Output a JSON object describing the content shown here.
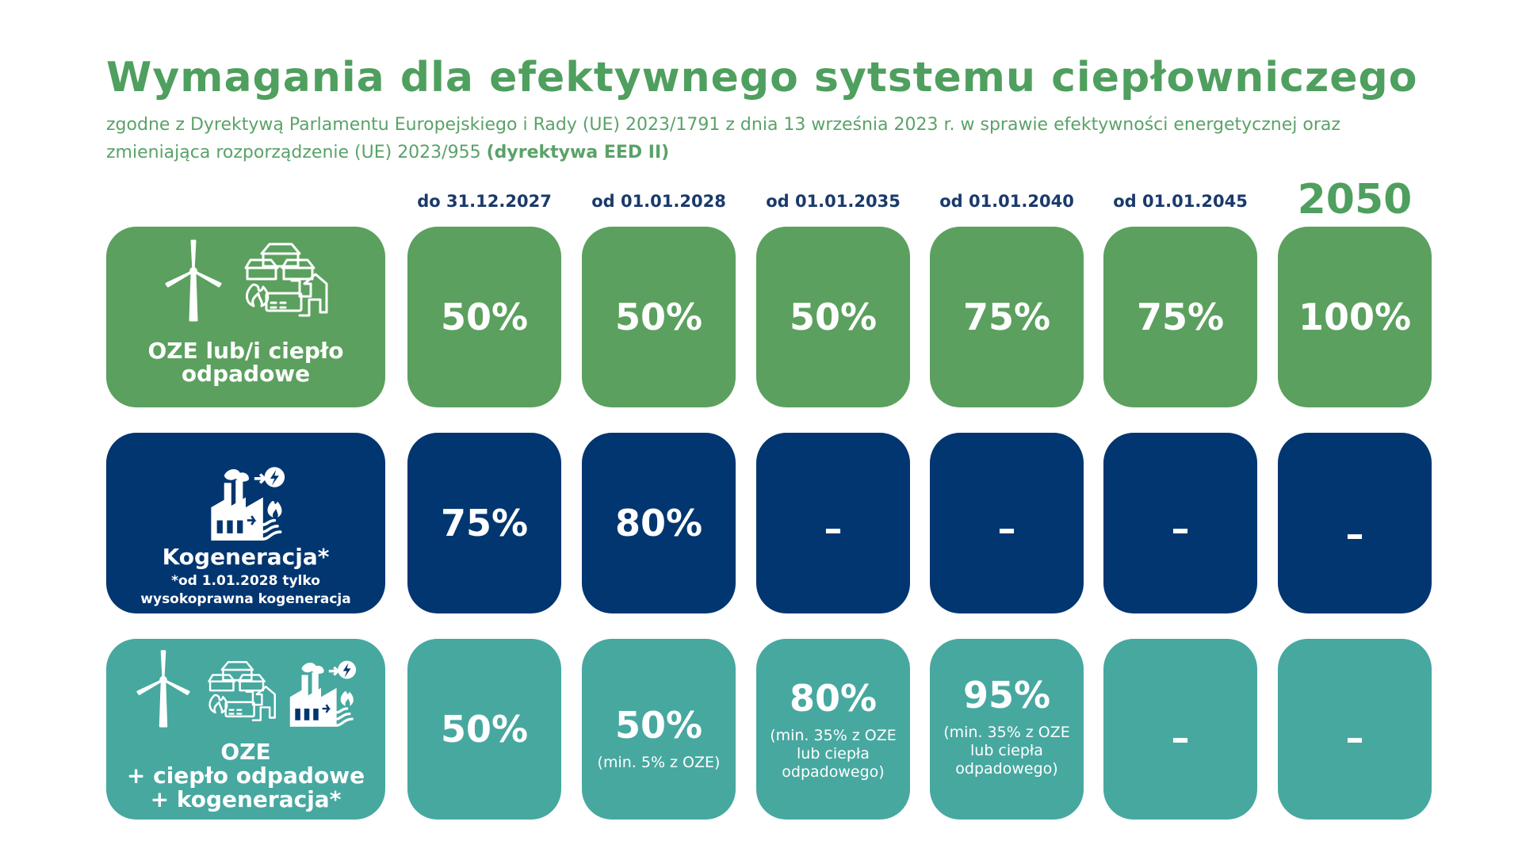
{
  "title": "Wymagania dla efektywnego sytstemu ciepłowniczego",
  "subtitle_main": "zgodne z Dyrektywą Parlamentu Europejskiego i Rady (UE) 2023/1791 z dnia 13 września 2023 r. w sprawie efektywności energetycznej oraz zmieniająca rozporządzenie (UE) 2023/955",
  "subtitle_bold": "(dyrektywa EED II)",
  "columns": [
    "do 31.12.2027",
    "od 01.01.2028",
    "od 01.01.2035",
    "od 01.01.2040",
    "od 01.01.2045",
    "2050"
  ],
  "rows": [
    {
      "label": [
        "OZE lub/i ciepło",
        "odpadowe"
      ],
      "icons": [
        "wind-turbine-icon",
        "waste-heat-icon"
      ],
      "color": "#5ba05e",
      "cells": [
        {
          "value": "50%"
        },
        {
          "value": "50%"
        },
        {
          "value": "50%"
        },
        {
          "value": "75%"
        },
        {
          "value": "75%"
        },
        {
          "value": "100%"
        }
      ]
    },
    {
      "label": [
        "Kogeneracja*"
      ],
      "sublabel": [
        "*od 1.01.2028 tylko",
        "wysokoprawna kogeneracja"
      ],
      "icons": [
        "cogeneration-plant-icon"
      ],
      "color": "#023670",
      "cells": [
        {
          "value": "75%"
        },
        {
          "value": "80%"
        },
        {
          "value": "–"
        },
        {
          "value": "–"
        },
        {
          "value": "–"
        },
        {
          "value": "–"
        }
      ]
    },
    {
      "label": [
        "OZE",
        "+ ciepło odpadowe",
        "+ kogeneracja*"
      ],
      "icons": [
        "wind-turbine-icon",
        "waste-heat-icon",
        "cogeneration-plant-icon"
      ],
      "color": "#47a8a0",
      "cells": [
        {
          "value": "50%"
        },
        {
          "value": "50%",
          "note": [
            "(min. 5% z OZE)"
          ]
        },
        {
          "value": "80%",
          "note": [
            "(min. 35% z OZE",
            "lub ciepła",
            "odpadowego)"
          ]
        },
        {
          "value": "95%",
          "note": [
            "(min. 35% z OZE",
            "lub ciepła",
            "odpadowego)"
          ]
        },
        {
          "value": "–"
        },
        {
          "value": "–"
        }
      ]
    }
  ]
}
